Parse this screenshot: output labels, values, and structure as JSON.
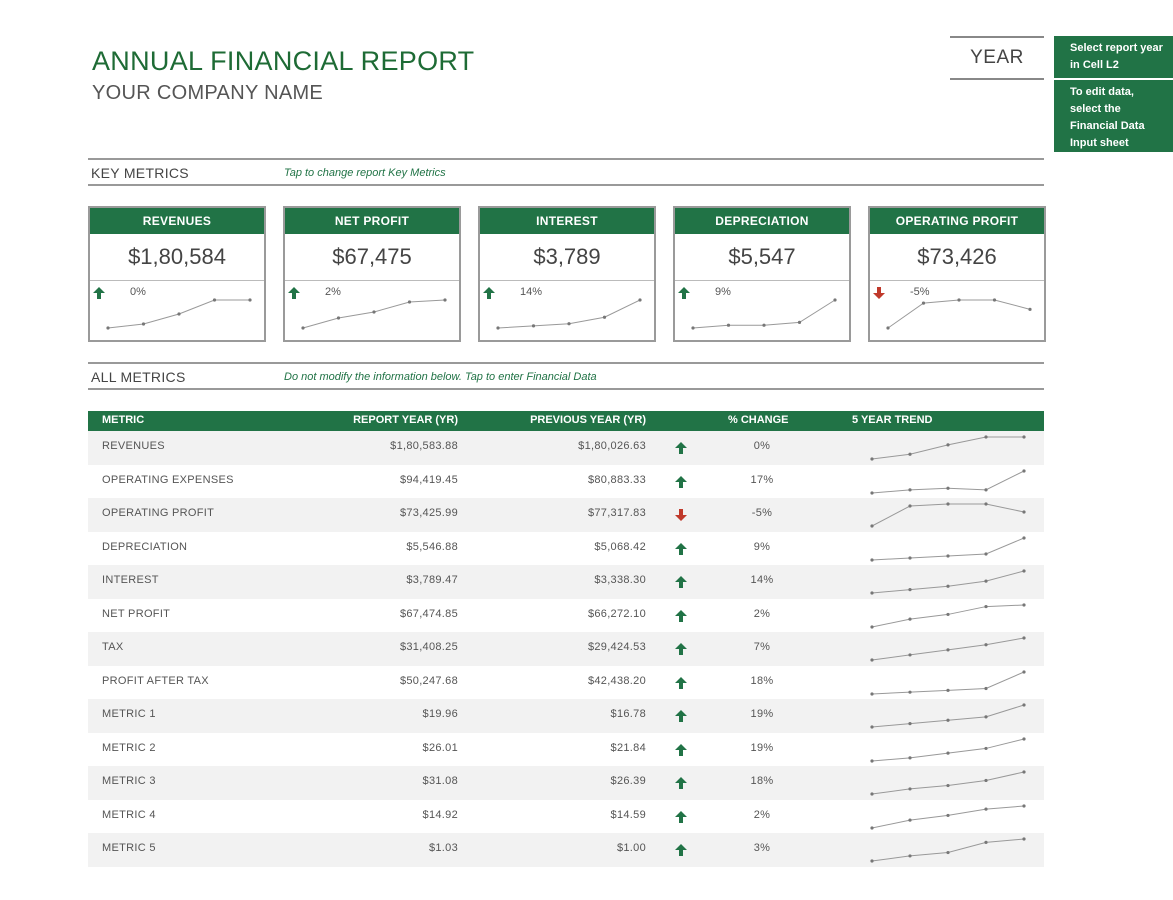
{
  "header": {
    "title": "ANNUAL FINANCIAL REPORT",
    "company": "YOUR COMPANY NAME",
    "year_label": "YEAR",
    "note1": "Select report year in Cell L2",
    "note2": "To edit data, select the Financial Data Input sheet"
  },
  "key_metrics": {
    "label": "KEY METRICS",
    "hint": "Tap to change report Key Metrics",
    "cards": [
      {
        "name": "REVENUES",
        "value": "$1,80,584",
        "change": "0%",
        "direction": "up",
        "trend": [
          1.0,
          1.2,
          1.7,
          2.4,
          2.4
        ]
      },
      {
        "name": "NET PROFIT",
        "value": "$67,475",
        "change": "2%",
        "direction": "up",
        "trend": [
          1.0,
          1.5,
          1.8,
          2.3,
          2.4
        ]
      },
      {
        "name": "INTEREST",
        "value": "$3,789",
        "change": "14%",
        "direction": "up",
        "trend": [
          1.0,
          1.1,
          1.2,
          1.5,
          2.3
        ]
      },
      {
        "name": "DEPRECIATION",
        "value": "$5,547",
        "change": "9%",
        "direction": "up",
        "trend": [
          1.0,
          1.1,
          1.1,
          1.2,
          2.0
        ]
      },
      {
        "name": "OPERATING PROFIT",
        "value": "$73,426",
        "change": "-5%",
        "direction": "down",
        "trend": [
          1.0,
          1.8,
          1.9,
          1.9,
          1.6
        ]
      }
    ]
  },
  "all_metrics": {
    "label": "ALL METRICS",
    "hint": "Do not modify the information below. Tap to enter Financial Data",
    "columns": [
      "METRIC",
      "REPORT YEAR (YR)",
      "PREVIOUS YEAR (YR)",
      "% CHANGE",
      "5 YEAR TREND"
    ],
    "rows": [
      {
        "metric": "REVENUES",
        "report_year": "$1,80,583.88",
        "previous_year": "$1,80,026.63",
        "change": "0%",
        "direction": "up",
        "trend": [
          1.0,
          1.3,
          1.9,
          2.4,
          2.4
        ]
      },
      {
        "metric": "OPERATING EXPENSES",
        "report_year": "$94,419.45",
        "previous_year": "$80,883.33",
        "change": "17%",
        "direction": "up",
        "trend": [
          1.0,
          1.2,
          1.3,
          1.2,
          2.4
        ]
      },
      {
        "metric": "OPERATING PROFIT",
        "report_year": "$73,425.99",
        "previous_year": "$77,317.83",
        "change": "-5%",
        "direction": "down",
        "trend": [
          1.0,
          2.0,
          2.1,
          2.1,
          1.7
        ]
      },
      {
        "metric": "DEPRECIATION",
        "report_year": "$5,546.88",
        "previous_year": "$5,068.42",
        "change": "9%",
        "direction": "up",
        "trend": [
          1.0,
          1.1,
          1.2,
          1.3,
          2.1
        ]
      },
      {
        "metric": "INTEREST",
        "report_year": "$3,789.47",
        "previous_year": "$3,338.30",
        "change": "14%",
        "direction": "up",
        "trend": [
          1.0,
          1.2,
          1.4,
          1.7,
          2.3
        ]
      },
      {
        "metric": "NET PROFIT",
        "report_year": "$67,474.85",
        "previous_year": "$66,272.10",
        "change": "2%",
        "direction": "up",
        "trend": [
          1.0,
          1.5,
          1.8,
          2.3,
          2.4
        ]
      },
      {
        "metric": "TAX",
        "report_year": "$31,408.25",
        "previous_year": "$29,424.53",
        "change": "7%",
        "direction": "up",
        "trend": [
          1.0,
          1.3,
          1.6,
          1.9,
          2.3
        ]
      },
      {
        "metric": "PROFIT AFTER TAX",
        "report_year": "$50,247.68",
        "previous_year": "$42,438.20",
        "change": "18%",
        "direction": "up",
        "trend": [
          1.0,
          1.1,
          1.2,
          1.3,
          2.2
        ]
      },
      {
        "metric": "METRIC 1",
        "report_year": "$19.96",
        "previous_year": "$16.78",
        "change": "19%",
        "direction": "up",
        "trend": [
          1.0,
          1.2,
          1.4,
          1.6,
          2.3
        ]
      },
      {
        "metric": "METRIC 2",
        "report_year": "$26.01",
        "previous_year": "$21.84",
        "change": "19%",
        "direction": "up",
        "trend": [
          1.0,
          1.2,
          1.5,
          1.8,
          2.4
        ]
      },
      {
        "metric": "METRIC 3",
        "report_year": "$31.08",
        "previous_year": "$26.39",
        "change": "18%",
        "direction": "up",
        "trend": [
          1.0,
          1.3,
          1.5,
          1.8,
          2.3
        ]
      },
      {
        "metric": "METRIC 4",
        "report_year": "$14.92",
        "previous_year": "$14.59",
        "change": "2%",
        "direction": "up",
        "trend": [
          1.0,
          1.5,
          1.8,
          2.2,
          2.4
        ]
      },
      {
        "metric": "METRIC 5",
        "report_year": "$1.03",
        "previous_year": "$1.00",
        "change": "3%",
        "direction": "up",
        "trend": [
          1.0,
          1.3,
          1.5,
          2.1,
          2.3
        ]
      }
    ]
  },
  "colors": {
    "green": "#217346",
    "title_green": "#1e6b35",
    "up": "#217346",
    "down": "#c0392b",
    "spark": "#999999"
  }
}
